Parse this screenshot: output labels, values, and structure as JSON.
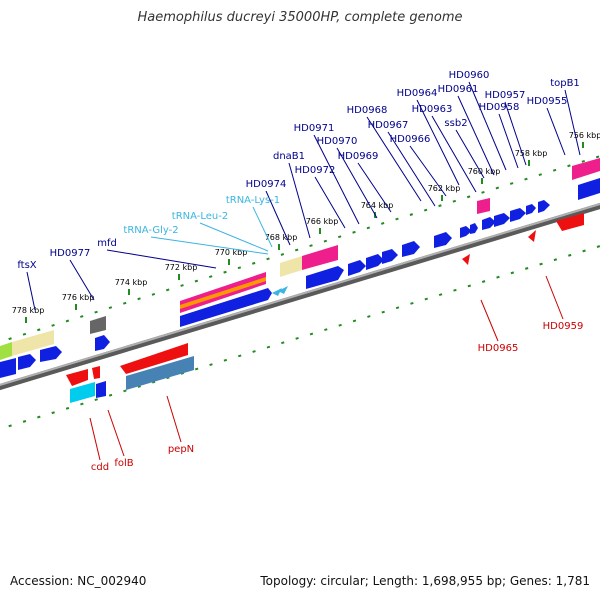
{
  "title": "Haemophilus ducreyi 35000HP, complete genome",
  "footer": {
    "accession": "Accession: NC_002940",
    "summary": "Topology: circular; Length: 1,698,955 bp; Genes: 1,781"
  },
  "colors": {
    "backbone": "#808080",
    "tick": "#228b22",
    "forward_gene": "#0000ee",
    "reverse_gene": "#ee0000",
    "label_forward": "#00008b",
    "label_reverse": "#cc0000",
    "label_trna": "#3ab6e0",
    "kbp_label": "#000000"
  },
  "kbp_marks": [
    "756 kbp",
    "758 kbp",
    "760 kbp",
    "762 kbp",
    "764 kbp",
    "766 kbp",
    "768 kbp",
    "770 kbp",
    "772 kbp",
    "774 kbp",
    "776 kbp",
    "778 kbp"
  ],
  "forward_labels": [
    "HD0960",
    "topB1",
    "HD0964",
    "HD0961",
    "HD0957",
    "HD0955",
    "HD0968",
    "HD0963",
    "HD0958",
    "ssb2",
    "HD0967",
    "HD0971",
    "HD0966",
    "HD0970",
    "dnaB1",
    "HD0969",
    "HD0972",
    "HD0974",
    "mfd",
    "HD0977",
    "ftsX"
  ],
  "trna_labels": [
    "tRNA-Lys-1",
    "tRNA-Leu-2",
    "tRNA-Gly-2"
  ],
  "reverse_labels": [
    "HD0959",
    "HD0965",
    "pepN",
    "folB",
    "cdd"
  ]
}
